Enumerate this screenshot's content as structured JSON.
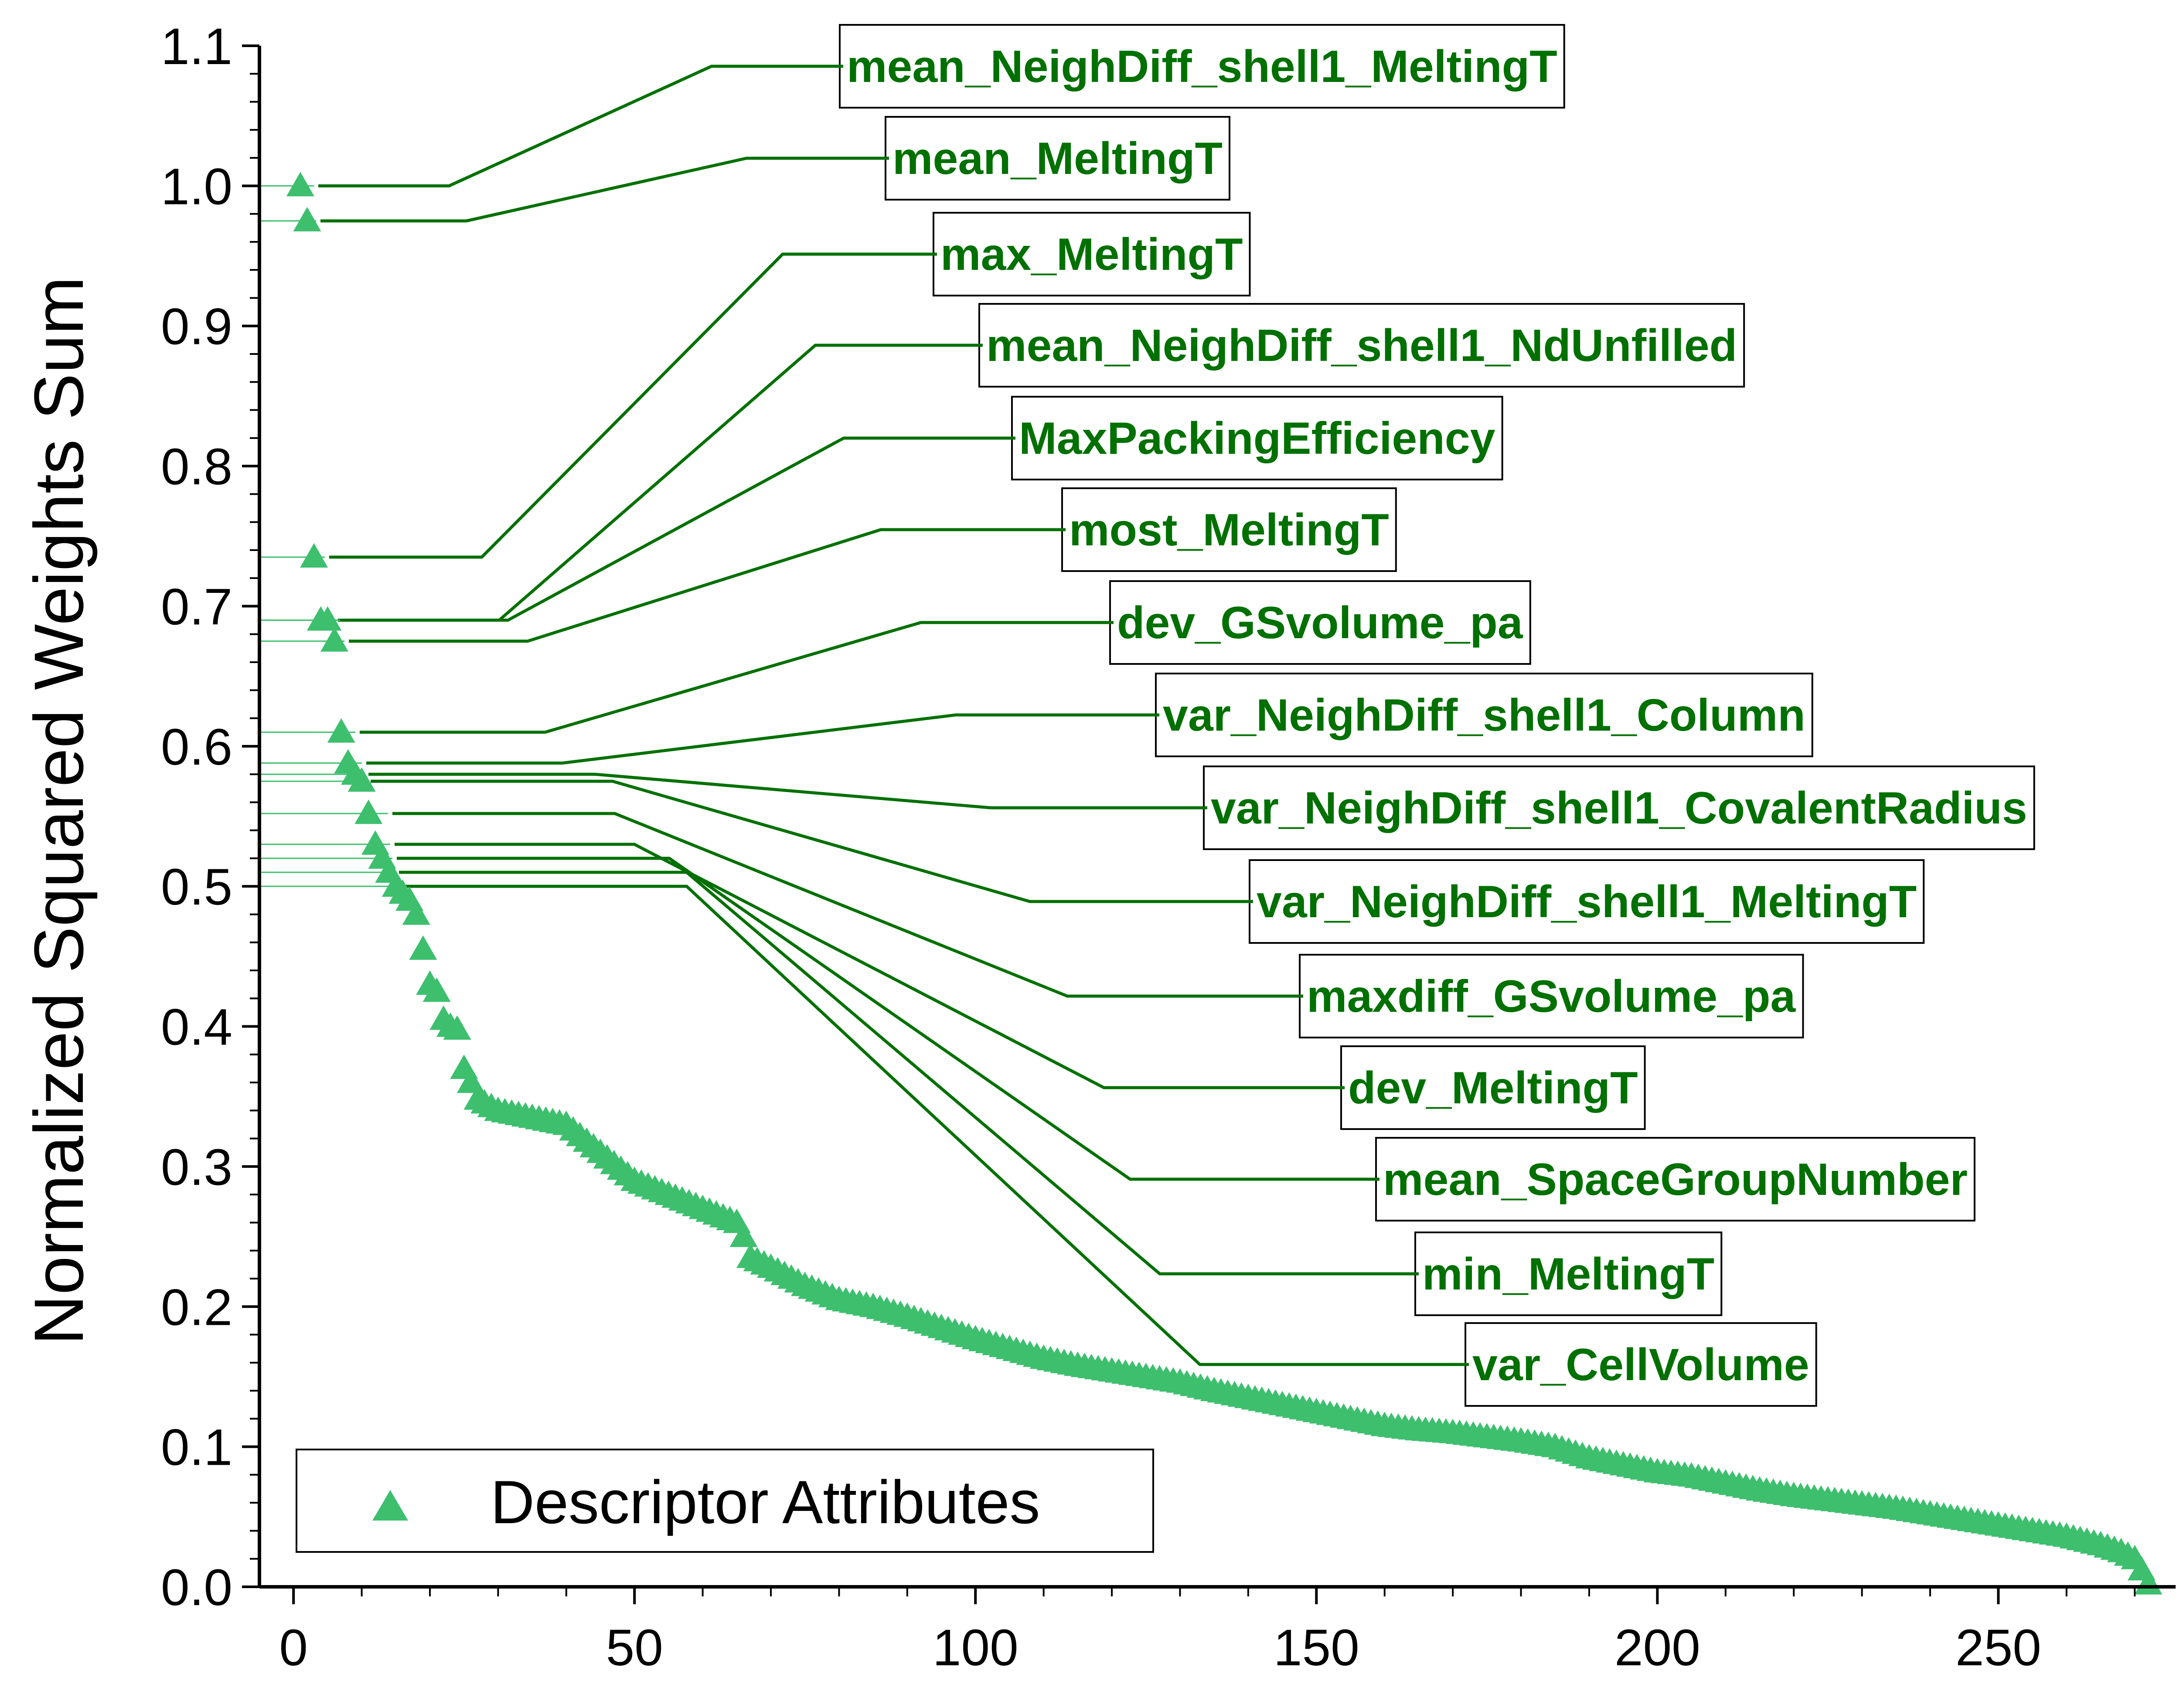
{
  "chart_data": {
    "type": "scatter",
    "title": "",
    "xlabel": "",
    "ylabel": "Normalized Squared Weights Sum",
    "xlim": [
      -5,
      276
    ],
    "ylim": [
      0,
      1.1
    ],
    "xticks": [
      "0",
      "50",
      "100",
      "150",
      "200",
      "250"
    ],
    "yticks": [
      "0.0",
      "0.1",
      "0.2",
      "0.3",
      "0.4",
      "0.5",
      "0.6",
      "0.7",
      "0.8",
      "0.9",
      "1.0",
      "1.1"
    ],
    "grid": false,
    "legend": {
      "position": "bottom-left",
      "entries": [
        "Descriptor Attributes"
      ]
    },
    "colors": {
      "marker": "#3dbf6e",
      "annotation": "#007000",
      "axis": "#000000"
    },
    "series": [
      {
        "name": "Descriptor Attributes",
        "marker": "triangle",
        "profile": [
          [
            1,
            1.0
          ],
          [
            2,
            0.975
          ],
          [
            3,
            0.735
          ],
          [
            4,
            0.69
          ],
          [
            5,
            0.69
          ],
          [
            6,
            0.675
          ],
          [
            7,
            0.61
          ],
          [
            8,
            0.588
          ],
          [
            9,
            0.58
          ],
          [
            10,
            0.575
          ],
          [
            11,
            0.552
          ],
          [
            12,
            0.53
          ],
          [
            13,
            0.52
          ],
          [
            14,
            0.51
          ],
          [
            15,
            0.5
          ],
          [
            16,
            0.495
          ],
          [
            17,
            0.49
          ],
          [
            18,
            0.48
          ],
          [
            19,
            0.455
          ],
          [
            20,
            0.43
          ],
          [
            21,
            0.425
          ],
          [
            22,
            0.405
          ],
          [
            23,
            0.4
          ],
          [
            24,
            0.398
          ],
          [
            25,
            0.37
          ],
          [
            26,
            0.36
          ],
          [
            27,
            0.348
          ],
          [
            30,
            0.34
          ],
          [
            35,
            0.335
          ],
          [
            40,
            0.33
          ],
          [
            45,
            0.31
          ],
          [
            50,
            0.29
          ],
          [
            55,
            0.28
          ],
          [
            60,
            0.27
          ],
          [
            65,
            0.26
          ],
          [
            66,
            0.25
          ],
          [
            67,
            0.235
          ],
          [
            70,
            0.228
          ],
          [
            75,
            0.215
          ],
          [
            80,
            0.205
          ],
          [
            85,
            0.2
          ],
          [
            90,
            0.193
          ],
          [
            95,
            0.185
          ],
          [
            100,
            0.177
          ],
          [
            105,
            0.17
          ],
          [
            110,
            0.163
          ],
          [
            115,
            0.158
          ],
          [
            120,
            0.154
          ],
          [
            125,
            0.15
          ],
          [
            130,
            0.146
          ],
          [
            135,
            0.14
          ],
          [
            140,
            0.135
          ],
          [
            145,
            0.13
          ],
          [
            150,
            0.125
          ],
          [
            155,
            0.12
          ],
          [
            160,
            0.115
          ],
          [
            165,
            0.112
          ],
          [
            170,
            0.11
          ],
          [
            175,
            0.107
          ],
          [
            180,
            0.104
          ],
          [
            185,
            0.1
          ],
          [
            190,
            0.092
          ],
          [
            195,
            0.087
          ],
          [
            200,
            0.082
          ],
          [
            205,
            0.079
          ],
          [
            210,
            0.074
          ],
          [
            215,
            0.069
          ],
          [
            220,
            0.065
          ],
          [
            225,
            0.062
          ],
          [
            230,
            0.059
          ],
          [
            235,
            0.056
          ],
          [
            240,
            0.052
          ],
          [
            245,
            0.048
          ],
          [
            250,
            0.044
          ],
          [
            255,
            0.04
          ],
          [
            260,
            0.036
          ],
          [
            265,
            0.03
          ],
          [
            268,
            0.025
          ],
          [
            270,
            0.02
          ],
          [
            271,
            0.012
          ],
          [
            272,
            0.002
          ]
        ]
      }
    ],
    "annotations": [
      {
        "label": "mean_NeighDiff_shell1_MeltingT",
        "x": 1,
        "y": 1.0
      },
      {
        "label": "mean_MeltingT",
        "x": 2,
        "y": 0.975
      },
      {
        "label": "max_MeltingT",
        "x": 3,
        "y": 0.735
      },
      {
        "label": "mean_NeighDiff_shell1_NdUnfilled",
        "x": 4,
        "y": 0.69
      },
      {
        "label": "MaxPackingEfficiency",
        "x": 5,
        "y": 0.69
      },
      {
        "label": "most_MeltingT",
        "x": 6,
        "y": 0.675
      },
      {
        "label": "dev_GSvolume_pa",
        "x": 7,
        "y": 0.61
      },
      {
        "label": "var_NeighDiff_shell1_Column",
        "x": 8,
        "y": 0.588
      },
      {
        "label": "var_NeighDiff_shell1_CovalentRadius",
        "x": 9,
        "y": 0.58
      },
      {
        "label": "var_NeighDiff_shell1_MeltingT",
        "x": 10,
        "y": 0.575
      },
      {
        "label": "maxdiff_GSvolume_pa",
        "x": 11,
        "y": 0.552
      },
      {
        "label": "dev_MeltingT",
        "x": 12,
        "y": 0.53
      },
      {
        "label": "mean_SpaceGroupNumber",
        "x": 13,
        "y": 0.52
      },
      {
        "label": "min_MeltingT",
        "x": 14,
        "y": 0.51
      },
      {
        "label": "var_CellVolume",
        "x": 15,
        "y": 0.5
      }
    ]
  }
}
